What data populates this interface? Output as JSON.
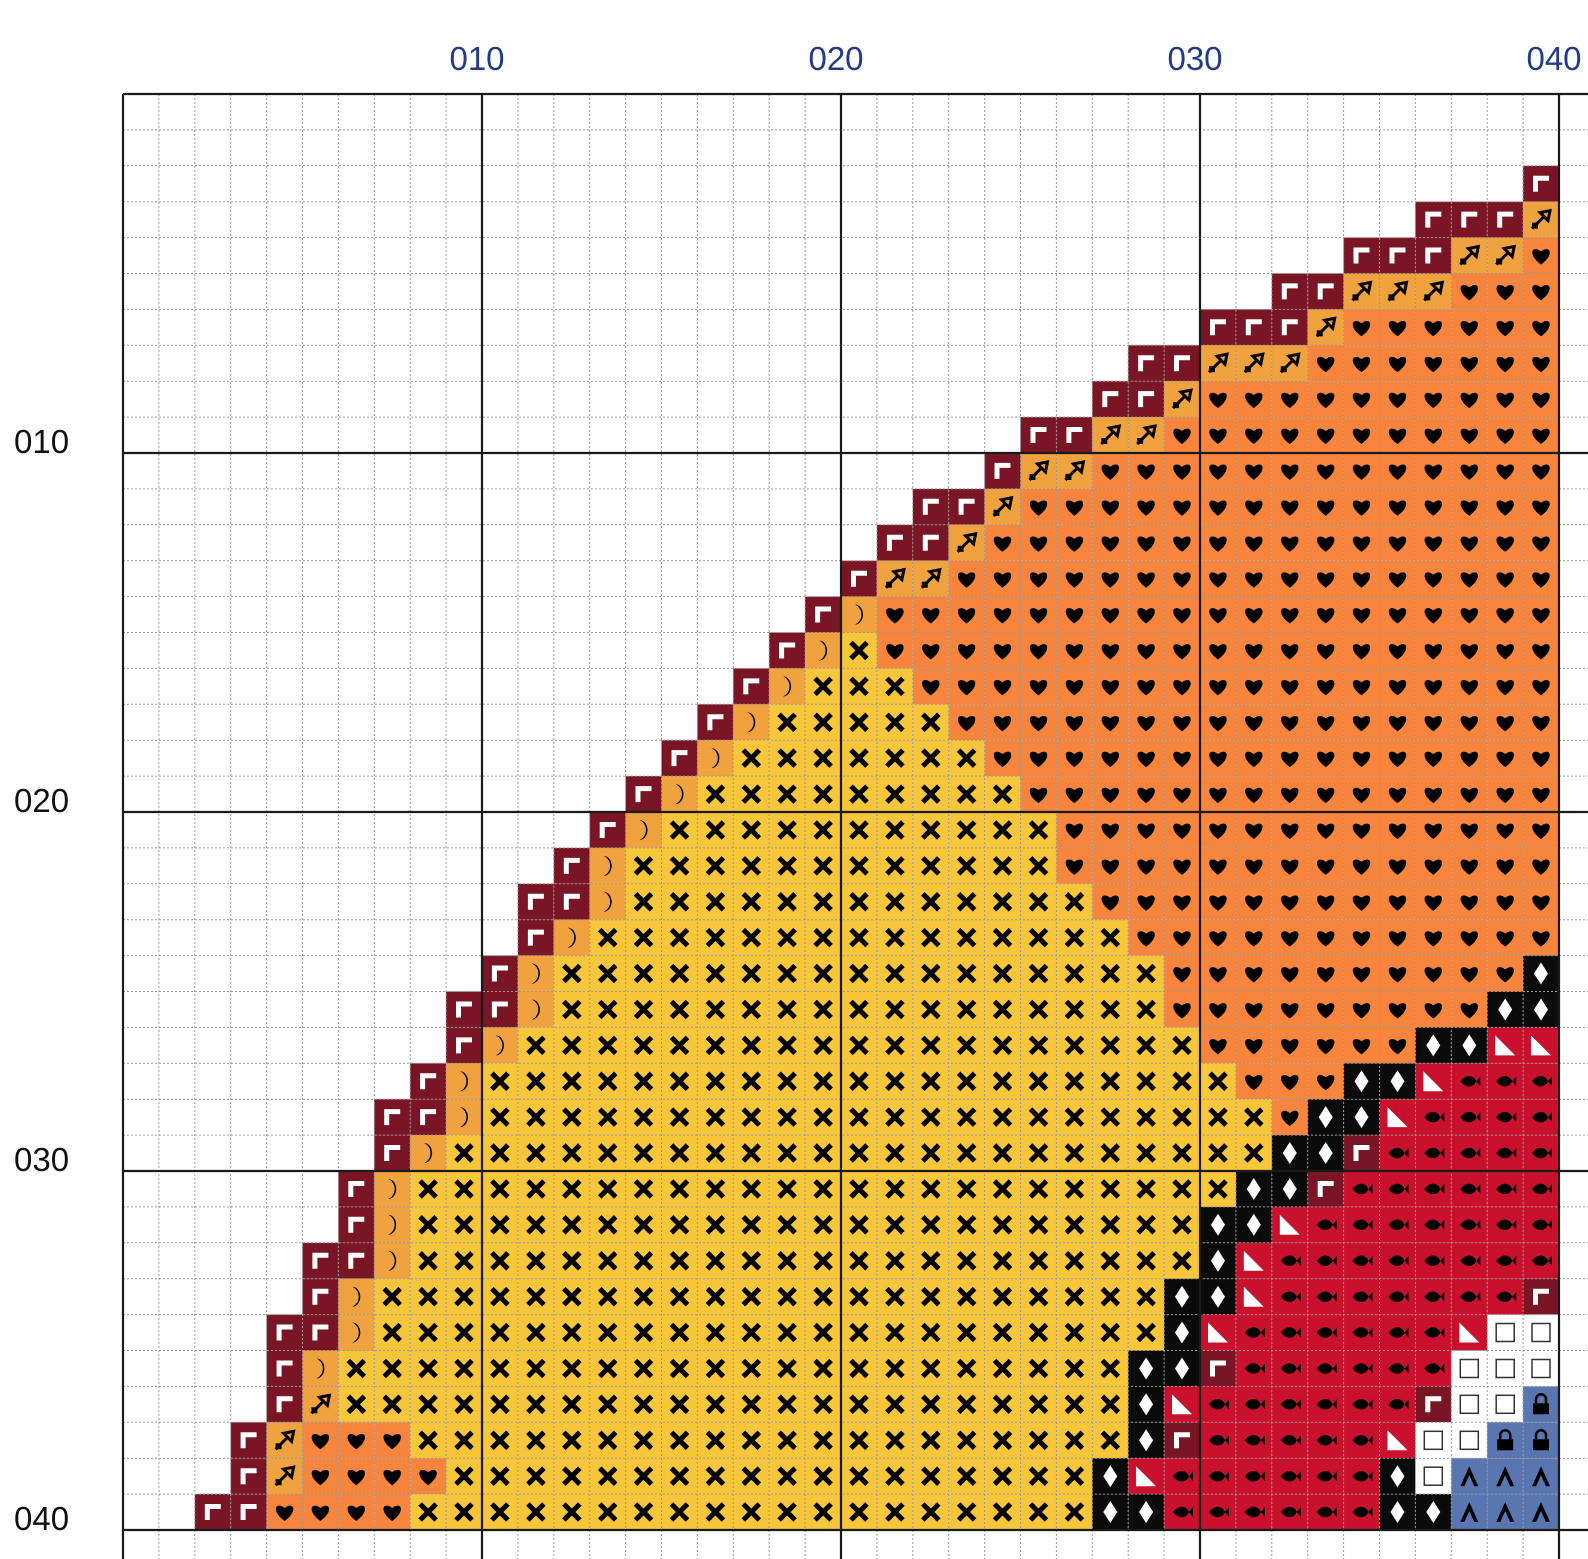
{
  "chart_data": {
    "type": "cross-stitch-pattern",
    "column_labels": [
      {
        "col": 10,
        "text": "010"
      },
      {
        "col": 20,
        "text": "020"
      },
      {
        "col": 30,
        "text": "030"
      },
      {
        "col": 40,
        "text": "040"
      }
    ],
    "row_labels": [
      {
        "row": 10,
        "text": "010"
      },
      {
        "row": 20,
        "text": "020"
      },
      {
        "row": 30,
        "text": "030"
      },
      {
        "row": 40,
        "text": "040"
      }
    ],
    "grid": {
      "columns_visible": 40,
      "rows_visible": 40,
      "major_every": 10
    },
    "colors": {
      "background": "#ffffff",
      "grid_minor": "#9a9a9a",
      "grid_major": "#1a1a1a",
      "maroon": "#7a1526",
      "light_orange": "#f0a23e",
      "orange": "#f7853e",
      "yellow": "#f7c63a",
      "black": "#0b0b0b",
      "red": "#c9102c",
      "white": "#ffffff",
      "slate_blue": "#5a76b0",
      "column_label": "#233a8a",
      "row_label": "#111111"
    },
    "legend": [
      {
        "color": "maroon",
        "symbol": "corner-mark",
        "icon": "corner-flag-icon"
      },
      {
        "color": "light_orange",
        "symbol": "diagonal-arrow",
        "icon": "diagonal-arrow-icon"
      },
      {
        "color": "orange",
        "symbol": "heart",
        "icon": "heart-icon"
      },
      {
        "color": "light_orange",
        "symbol": "crescent",
        "icon": "crescent-icon"
      },
      {
        "color": "yellow",
        "symbol": "cross",
        "icon": "cross-icon"
      },
      {
        "color": "black",
        "symbol": "diamond",
        "icon": "diamond-icon"
      },
      {
        "color": "red",
        "symbol": "fish",
        "icon": "fish-icon"
      },
      {
        "color": "red",
        "symbol": "triangle",
        "icon": "triangle-icon"
      },
      {
        "color": "white",
        "symbol": "square",
        "icon": "square-icon"
      },
      {
        "color": "slate_blue",
        "symbol": "lock",
        "icon": "lock-icon"
      },
      {
        "color": "slate_blue",
        "symbol": "caret",
        "icon": "caret-icon"
      }
    ]
  }
}
